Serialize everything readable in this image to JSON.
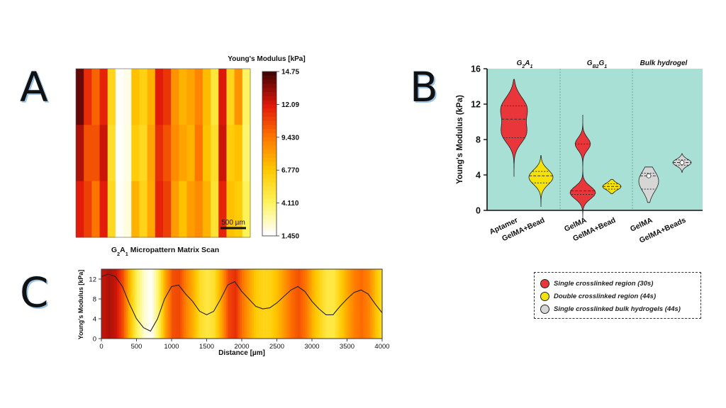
{
  "panels": {
    "a": "A",
    "b": "B",
    "c": "C"
  },
  "chart_data": [
    {
      "type": "heatmap",
      "panel": "A",
      "title": "Young's Modulus [kPa]",
      "caption_main": "G",
      "caption_sub1": "2",
      "caption_mid": "A",
      "caption_sub2": "1",
      "caption_rest": " Micropattern  Matrix Scan",
      "scalebar_label": "500 µm",
      "colorbar_ticks": [
        "14.75",
        "12.09",
        "9.430",
        "6.770",
        "4.110",
        "1.450"
      ],
      "vmin": 1.45,
      "vmax": 14.75,
      "rows": [
        [
          14.2,
          11.5,
          10.0,
          11.8,
          6.0,
          1.6,
          1.8,
          7.0,
          6.2,
          7.5,
          12.0,
          11.3,
          8.5,
          7.5,
          8.0,
          9.0,
          7.2,
          5.0,
          12.2,
          6.0,
          8.5,
          4.0
        ],
        [
          13.0,
          10.5,
          10.5,
          12.5,
          5.5,
          1.5,
          1.9,
          6.5,
          5.8,
          8.0,
          11.5,
          10.5,
          8.8,
          8.0,
          7.5,
          9.5,
          7.0,
          5.5,
          12.5,
          6.5,
          7.0,
          3.8
        ],
        [
          12.0,
          11.0,
          9.5,
          12.0,
          5.8,
          1.6,
          2.0,
          7.5,
          6.0,
          7.8,
          11.8,
          11.0,
          8.2,
          7.0,
          8.2,
          8.8,
          7.5,
          5.2,
          11.8,
          7.0,
          6.5,
          4.2
        ]
      ]
    },
    {
      "type": "violin",
      "panel": "B",
      "ylabel": "Young's Modulus (kPa)",
      "ylim": [
        0,
        16
      ],
      "yticks": [
        "0",
        "4",
        "8",
        "12",
        "16"
      ],
      "groups": [
        {
          "title_main": "G",
          "title_sub1": "2",
          "title_mid": "A",
          "title_sub2": "1"
        },
        {
          "title_main": "G",
          "title_sub1": "B2",
          "title_mid": "G",
          "title_sub2": "1"
        },
        {
          "title_main": "Bulk hydrogel",
          "title_sub1": "",
          "title_mid": "",
          "title_sub2": ""
        }
      ],
      "categories": [
        "Aptamer",
        "GelMA+Bead",
        "GelMA",
        "GelMA+Bead",
        "GelMA",
        "GelMA+Beads"
      ],
      "violins": [
        {
          "min": 3.8,
          "max": 14.8,
          "q1": 8.2,
          "median": 10.3,
          "q3": 11.8,
          "color": "#e8363a"
        },
        {
          "min": 0.4,
          "max": 6.2,
          "q1": 3.1,
          "median": 3.9,
          "q3": 4.4,
          "color": "#f5e20a"
        },
        {
          "min": -1.0,
          "max": 10.8,
          "q1": 1.8,
          "median": 2.2,
          "q3": 7.5,
          "color": "#e8363a"
        },
        {
          "min": 1.9,
          "max": 3.5,
          "q1": 2.4,
          "median": 2.7,
          "q3": 3.0,
          "color": "#f5e20a"
        },
        {
          "min": 0.9,
          "max": 4.9,
          "q1": 2.4,
          "median": 3.9,
          "q3": 4.2,
          "color": "#d6d6d6"
        },
        {
          "min": 4.3,
          "max": 6.4,
          "q1": 5.1,
          "median": 5.4,
          "q3": 5.7,
          "color": "#d6d6d6"
        }
      ],
      "background": "#a8e0d5"
    },
    {
      "type": "line",
      "panel": "C",
      "xlabel": "Distance [µm]",
      "ylabel": "Young's Modulus [kPa]",
      "xlim": [
        0,
        4000
      ],
      "ylim": [
        0,
        14
      ],
      "xticks": [
        "0",
        "500",
        "1000",
        "1500",
        "2000",
        "2500",
        "3000",
        "3500",
        "4000"
      ],
      "yticks": [
        "0",
        "4",
        "8",
        "12"
      ],
      "x": [
        0,
        100,
        200,
        300,
        400,
        500,
        600,
        700,
        800,
        900,
        1000,
        1100,
        1200,
        1300,
        1400,
        1500,
        1600,
        1700,
        1800,
        1900,
        2000,
        2100,
        2200,
        2300,
        2400,
        2500,
        2600,
        2700,
        2800,
        2900,
        3000,
        3100,
        3200,
        3300,
        3400,
        3500,
        3600,
        3700,
        3800,
        3900,
        4000
      ],
      "y": [
        12.5,
        13.0,
        12.5,
        10.5,
        7.0,
        4.0,
        2.2,
        1.5,
        4.0,
        8.0,
        10.5,
        10.8,
        9.0,
        7.5,
        5.5,
        4.8,
        5.5,
        8.0,
        10.8,
        11.5,
        9.5,
        8.0,
        6.5,
        6.0,
        6.2,
        7.2,
        8.5,
        9.8,
        10.5,
        9.5,
        7.5,
        6.0,
        4.8,
        4.8,
        6.5,
        8.0,
        9.3,
        9.8,
        9.0,
        7.0,
        5.2
      ]
    }
  ],
  "legend": {
    "items": [
      {
        "label": "Single crosslinked region (30s)",
        "color": "#e8363a"
      },
      {
        "label": "Double crosslinked region (44s)",
        "color": "#f5e20a"
      },
      {
        "label": "Single crosslinked bulk hydrogels (44s)",
        "color": "#d6d6d6"
      }
    ]
  }
}
